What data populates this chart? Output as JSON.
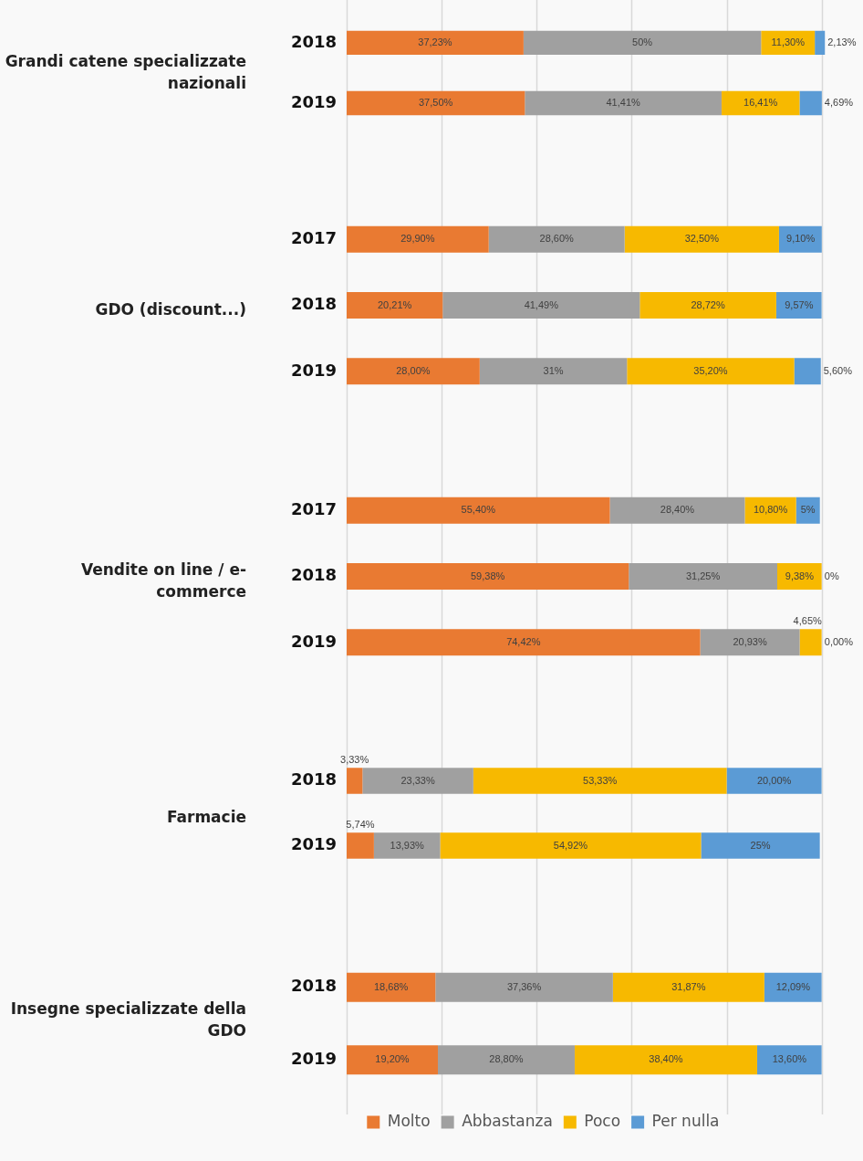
{
  "chart_data": [
    {
      "type": "bar",
      "orientation": "horizontal",
      "stacked": true,
      "title": "Grandi catene specializzate nazionali",
      "categories": [
        "2018",
        "2019"
      ],
      "xlim": [
        0,
        101
      ],
      "xticks": [
        {
          "value": 0,
          "label": null
        },
        {
          "value": 20,
          "label": null
        },
        {
          "value": 40,
          "label": null
        },
        {
          "value": 60,
          "label": null
        },
        {
          "value": 80,
          "label": null
        },
        {
          "value": 100,
          "label": null
        }
      ],
      "grid": "x",
      "tick_labels": "y",
      "legend": false,
      "series": [
        {
          "color": "#e97a32",
          "values": [
            37.23,
            37.5
          ],
          "value_labels": [
            "37,23%",
            "37,50%"
          ]
        },
        {
          "color": "#a0a0a0",
          "values": [
            50,
            41.41
          ],
          "value_labels": [
            "50%",
            "41,41%"
          ]
        },
        {
          "color": "#f7b900",
          "values": [
            11.3,
            16.41
          ],
          "value_labels": [
            "11,30%",
            "16,41%"
          ]
        },
        {
          "color": "#5b9bd5",
          "values": [
            2.13,
            4.69
          ],
          "value_labels": [
            "2,13%",
            "4,69%"
          ]
        }
      ]
    },
    {
      "type": "bar",
      "orientation": "horizontal",
      "stacked": true,
      "title": "GDO (discount...)",
      "categories": [
        "2017",
        "2018",
        "2019"
      ],
      "xlim": [
        0,
        100
      ],
      "xticks": [
        {
          "value": 0,
          "label": null
        },
        {
          "value": 20,
          "label": null
        },
        {
          "value": 40,
          "label": null
        },
        {
          "value": 60,
          "label": null
        },
        {
          "value": 80,
          "label": null
        },
        {
          "value": 100,
          "label": null
        }
      ],
      "grid": "x",
      "tick_labels": "y",
      "legend": false,
      "series": [
        {
          "color": "#e97a32",
          "values": [
            29.9,
            20.21,
            28
          ],
          "value_labels": [
            "29,90%",
            "20,21%",
            "28,00%"
          ]
        },
        {
          "color": "#a0a0a0",
          "values": [
            28.6,
            41.49,
            31
          ],
          "value_labels": [
            "28,60%",
            "41,49%",
            "31%"
          ]
        },
        {
          "color": "#f7b900",
          "values": [
            32.5,
            28.72,
            35.2
          ],
          "value_labels": [
            "32,50%",
            "28,72%",
            "35,20%"
          ]
        },
        {
          "color": "#5b9bd5",
          "values": [
            9.1,
            9.57,
            5.6
          ],
          "value_labels": [
            "9,10%",
            "9,57%",
            "5,60%"
          ]
        }
      ]
    },
    {
      "type": "bar",
      "orientation": "horizontal",
      "stacked": true,
      "title": "Vendite on line / e-commerce",
      "categories": [
        "2017",
        "2018",
        "2019"
      ],
      "xlim": [
        0,
        100
      ],
      "xticks": [
        {
          "value": 0,
          "label": null
        },
        {
          "value": 20,
          "label": null
        },
        {
          "value": 40,
          "label": null
        },
        {
          "value": 60,
          "label": null
        },
        {
          "value": 80,
          "label": null
        },
        {
          "value": 100,
          "label": null
        }
      ],
      "grid": "x",
      "tick_labels": "y",
      "legend": false,
      "series": [
        {
          "color": "#e97a32",
          "values": [
            55.4,
            59.38,
            74.42
          ],
          "value_labels": [
            "55,40%",
            "59,38%",
            "74,42%"
          ]
        },
        {
          "color": "#a0a0a0",
          "values": [
            28.4,
            31.25,
            20.93
          ],
          "value_labels": [
            "28,40%",
            "31,25%",
            "20,93%"
          ]
        },
        {
          "color": "#f7b900",
          "values": [
            10.8,
            9.38,
            4.65
          ],
          "value_labels": [
            "10,80%",
            "9,38%",
            "4,65%"
          ]
        },
        {
          "color": "#5b9bd5",
          "values": [
            5,
            0,
            0
          ],
          "value_labels": [
            "5%",
            "0%",
            "0,00%"
          ]
        }
      ]
    },
    {
      "type": "bar",
      "orientation": "horizontal",
      "stacked": true,
      "title": "Farmacie",
      "categories": [
        "2018",
        "2019"
      ],
      "xlim": [
        0,
        100
      ],
      "xticks": [
        {
          "value": 0,
          "label": null
        },
        {
          "value": 20,
          "label": null
        },
        {
          "value": 40,
          "label": null
        },
        {
          "value": 60,
          "label": null
        },
        {
          "value": 80,
          "label": null
        },
        {
          "value": 100,
          "label": null
        }
      ],
      "grid": "x",
      "tick_labels": "y",
      "legend": false,
      "series": [
        {
          "color": "#e97a32",
          "values": [
            3.33,
            5.74
          ],
          "value_labels": [
            "3,33%",
            "5,74%"
          ]
        },
        {
          "color": "#a0a0a0",
          "values": [
            23.33,
            13.93
          ],
          "value_labels": [
            "23,33%",
            "13,93%"
          ]
        },
        {
          "color": "#f7b900",
          "values": [
            53.33,
            54.92
          ],
          "value_labels": [
            "53,33%",
            "54,92%"
          ]
        },
        {
          "color": "#5b9bd5",
          "values": [
            20,
            25
          ],
          "value_labels": [
            "20,00%",
            "25%"
          ]
        }
      ]
    },
    {
      "type": "bar",
      "orientation": "horizontal",
      "stacked": true,
      "title": "Insegne specializzate della GDO",
      "categories": [
        "2018",
        "2019"
      ],
      "xlim": [
        0,
        100
      ],
      "xticks": [
        {
          "value": 0,
          "label": null
        },
        {
          "value": 20,
          "label": null
        },
        {
          "value": 40,
          "label": null
        },
        {
          "value": 60,
          "label": null
        },
        {
          "value": 80,
          "label": null
        },
        {
          "value": 100,
          "label": null
        }
      ],
      "grid": "x",
      "tick_labels": "y",
      "legend": "bottom",
      "series": [
        {
          "name": "Molto",
          "color": "#e97a32",
          "values": [
            18.68,
            19.2
          ],
          "value_labels": [
            "18,68%",
            "19,20%"
          ]
        },
        {
          "name": "Abbastanza",
          "color": "#a0a0a0",
          "values": [
            37.36,
            28.8
          ],
          "value_labels": [
            "37,36%",
            "28,80%"
          ]
        },
        {
          "name": "Poco",
          "color": "#f7b900",
          "values": [
            31.87,
            38.4
          ],
          "value_labels": [
            "31,87%",
            "38,40%"
          ]
        },
        {
          "name": "Per nulla",
          "color": "#5b9bd5",
          "values": [
            12.09,
            13.6
          ],
          "value_labels": [
            "12,09%",
            "13,60%"
          ]
        }
      ]
    }
  ]
}
